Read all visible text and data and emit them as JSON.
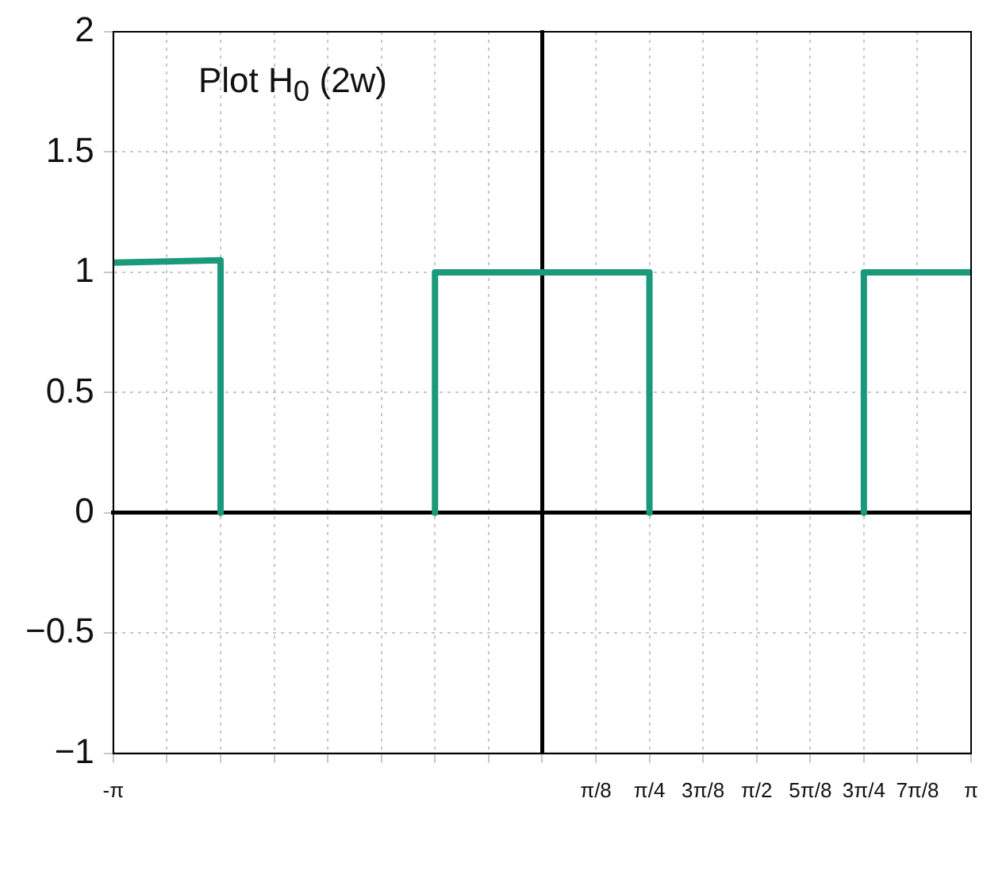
{
  "chart_data": {
    "type": "line",
    "title": "Plot H$_{0}$ (2w)",
    "x": [
      -3.1416,
      -2.3562,
      -2.3562,
      null,
      -0.7854,
      -0.7854,
      0.7854,
      0.7854,
      null,
      2.3562,
      2.3562,
      3.1416
    ],
    "values": [
      1.04,
      1.05,
      0,
      null,
      0,
      1,
      1,
      0,
      null,
      0,
      1,
      1
    ],
    "color": "#1a9a7a",
    "xlim": [
      -3.1416,
      3.1416
    ],
    "xticks": [
      {
        "value": -3.1416,
        "label": "-π"
      },
      {
        "value": -2.7489,
        "label": null
      },
      {
        "value": -2.3562,
        "label": null
      },
      {
        "value": -1.9635,
        "label": null
      },
      {
        "value": -1.5708,
        "label": null
      },
      {
        "value": -1.1781,
        "label": null
      },
      {
        "value": -0.7854,
        "label": null
      },
      {
        "value": -0.3927,
        "label": null
      },
      {
        "value": 0,
        "label": null
      },
      {
        "value": 0.3927,
        "label": "π/8"
      },
      {
        "value": 0.7854,
        "label": "π/4"
      },
      {
        "value": 1.1781,
        "label": "3π/8"
      },
      {
        "value": 1.5708,
        "label": "π/2"
      },
      {
        "value": 1.9635,
        "label": "5π/8"
      },
      {
        "value": 2.3562,
        "label": "3π/4"
      },
      {
        "value": 2.7489,
        "label": "7π/8"
      },
      {
        "value": 3.1416,
        "label": "π"
      }
    ],
    "ylim": [
      -1,
      2
    ],
    "yticks": [
      {
        "value": -1,
        "label": "−1"
      },
      {
        "value": -0.5,
        "label": "−0.5"
      },
      0,
      0.5,
      1,
      1.5,
      2
    ],
    "grid": true,
    "legend": false,
    "marker": "none",
    "line_style": "solid"
  }
}
